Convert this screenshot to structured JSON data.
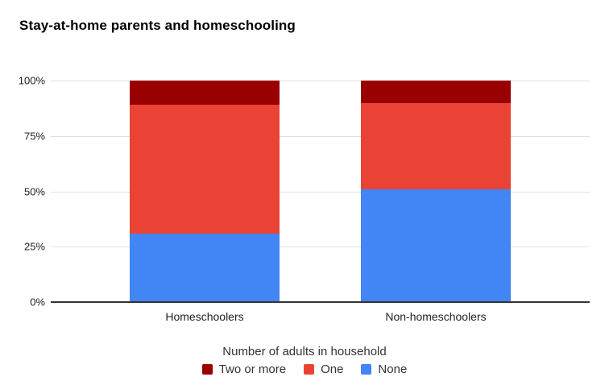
{
  "chart_data": {
    "type": "bar",
    "stacked": true,
    "percent_scale": true,
    "title": "Stay-at-home parents and homeschooling",
    "categories": [
      "Homeschoolers",
      "Non-homeschoolers"
    ],
    "series": [
      {
        "name": "None",
        "color": "#4285F4",
        "values": [
          31,
          51
        ]
      },
      {
        "name": "One",
        "color": "#EA4335",
        "values": [
          58,
          39
        ]
      },
      {
        "name": "Two or more",
        "color": "#990000",
        "values": [
          11,
          10
        ]
      }
    ],
    "xlabel": "",
    "ylabel": "",
    "ylim": [
      0,
      100
    ],
    "yticks": [
      0,
      25,
      50,
      75,
      100
    ],
    "ytick_labels": [
      "0%",
      "25%",
      "50%",
      "75%",
      "100%"
    ],
    "grid": true,
    "legend": {
      "position": "bottom",
      "title": "Number of adults in household",
      "items": [
        {
          "label": "Two or more",
          "color": "#990000"
        },
        {
          "label": "One",
          "color": "#EA4335"
        },
        {
          "label": "None",
          "color": "#4285F4"
        }
      ]
    },
    "colors": {
      "background": "#FFFFFF",
      "gridline": "#E0E0E0",
      "axis_line": "#333333",
      "title_text": "#000000",
      "label_text": "#222222"
    }
  }
}
